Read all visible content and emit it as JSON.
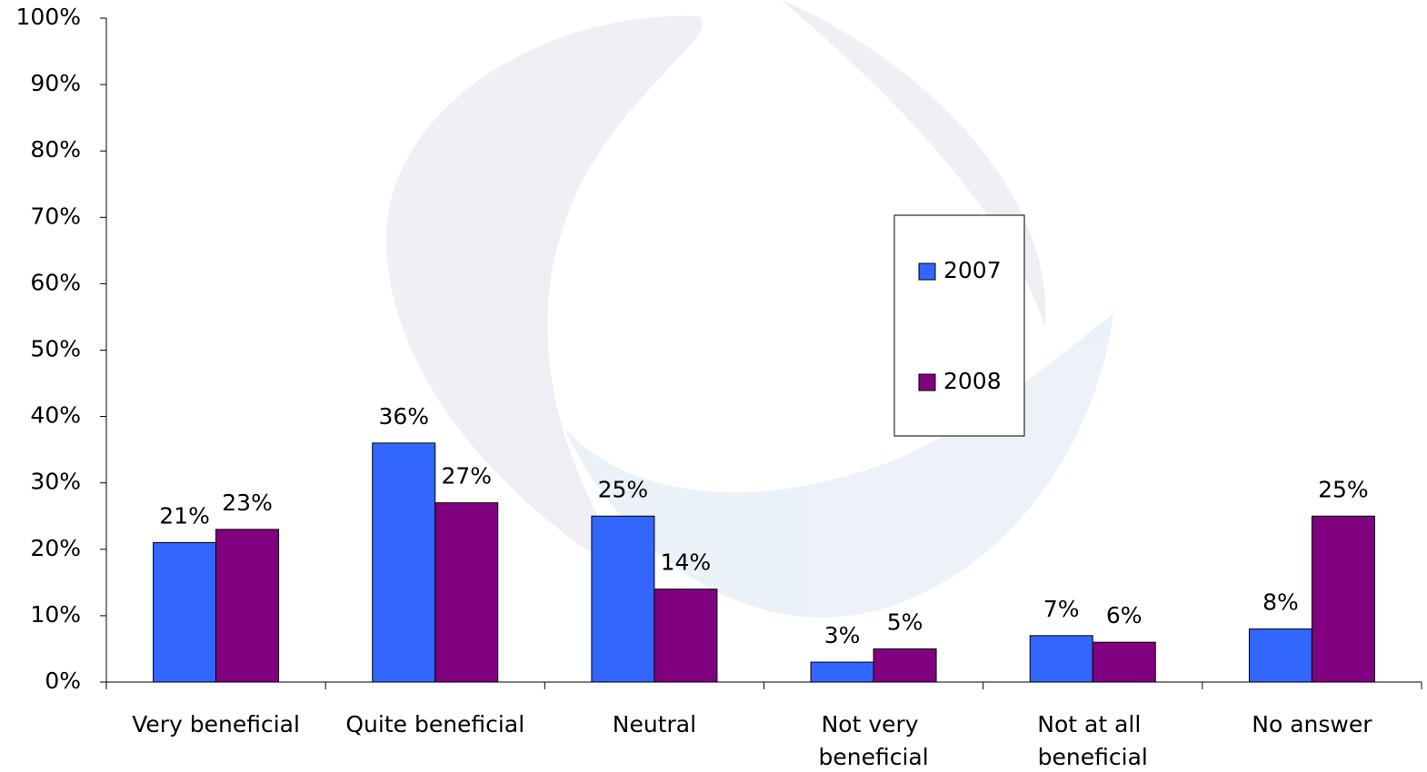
{
  "chart_data": {
    "type": "bar",
    "categories": [
      "Very beneficial",
      "Quite beneficial",
      "Neutral",
      "Not very beneficial",
      "Not at all beneficial",
      "No answer"
    ],
    "series": [
      {
        "name": "2007",
        "color": "#3366ff",
        "values": [
          21,
          36,
          25,
          3,
          7,
          8
        ],
        "value_labels": [
          "21%",
          "36%",
          "25%",
          "3%",
          "7%",
          "8%"
        ]
      },
      {
        "name": "2008",
        "color": "#800080",
        "values": [
          23,
          27,
          14,
          5,
          6,
          25
        ],
        "value_labels": [
          "23%",
          "27%",
          "14%",
          "5%",
          "6%",
          "25%"
        ]
      }
    ],
    "ylim": [
      0,
      100
    ],
    "yticks": [
      {
        "value": 0,
        "label": "0%"
      },
      {
        "value": 10,
        "label": "10%"
      },
      {
        "value": 20,
        "label": "20%"
      },
      {
        "value": 30,
        "label": "30%"
      },
      {
        "value": 40,
        "label": "40%"
      },
      {
        "value": 50,
        "label": "50%"
      },
      {
        "value": 60,
        "label": "60%"
      },
      {
        "value": 70,
        "label": "70%"
      },
      {
        "value": 80,
        "label": "80%"
      },
      {
        "value": 90,
        "label": "90%"
      },
      {
        "value": 100,
        "label": "100%"
      }
    ],
    "grid": false,
    "legend": "right"
  }
}
